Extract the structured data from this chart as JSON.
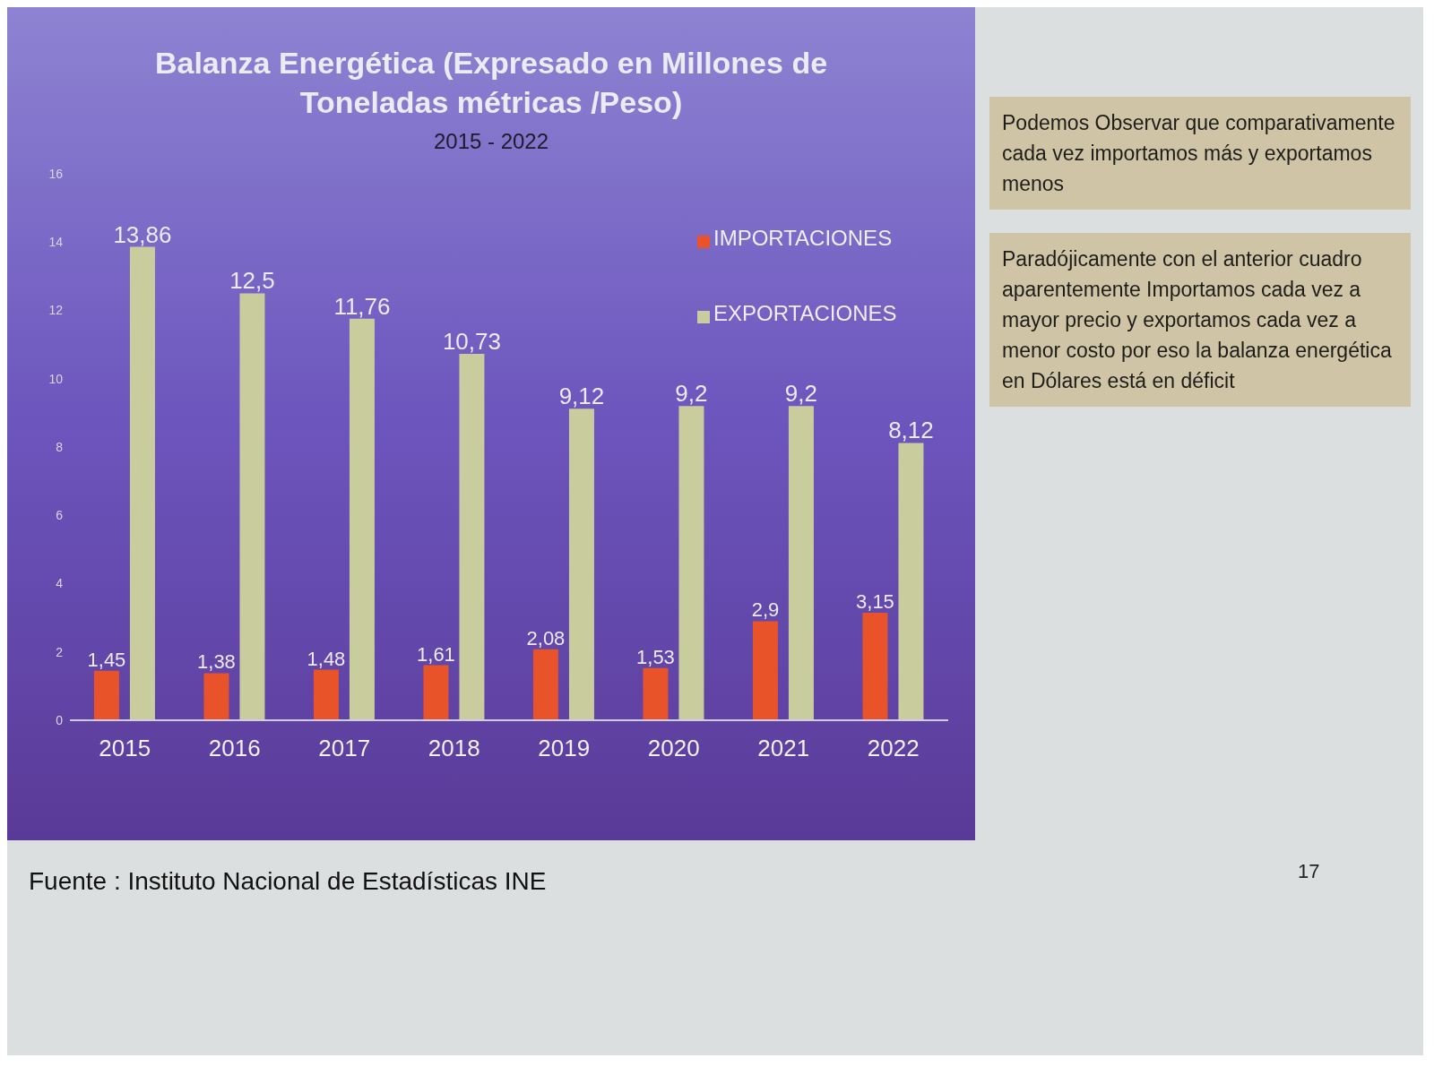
{
  "chart_data": {
    "type": "bar",
    "title": "Balanza Energética (Expresado en Millones de Toneladas métricas /Peso)",
    "subtitle": "2015 - 2022",
    "categories": [
      "2015",
      "2016",
      "2017",
      "2018",
      "2019",
      "2020",
      "2021",
      "2022"
    ],
    "series": [
      {
        "name": "IMPORTACIONES",
        "color": "#e8532a",
        "values": [
          1.45,
          1.38,
          1.48,
          1.61,
          2.08,
          1.53,
          2.9,
          3.15
        ],
        "value_labels": [
          "1,45",
          "1,38",
          "1,48",
          "1,61",
          "2,08",
          "1,53",
          "2,9",
          "3,15"
        ]
      },
      {
        "name": "EXPORTACIONES",
        "color": "#c9cc9c",
        "values": [
          13.86,
          12.5,
          11.76,
          10.73,
          9.12,
          9.2,
          9.2,
          8.12
        ],
        "value_labels": [
          "13,86",
          "12,5",
          "11,76",
          "10,73",
          "9,12",
          "9,2",
          "9,2",
          "8,12"
        ]
      }
    ],
    "ylim": [
      0,
      16
    ],
    "yticks": [
      0,
      2,
      4,
      6,
      8,
      10,
      12,
      14,
      16
    ],
    "legend": "top right",
    "annotations": [
      "Podemos Observar que comparativamente cada vez importamos más y exportamos menos",
      "Paradójicamente con el anterior cuadro aparentemente Importamos cada vez a mayor precio y exportamos cada vez a menor costo por eso la balanza energética en Dólares está en déficit",
      "Fuente : Instituto Nacional de Estadísticas  INE",
      "17"
    ]
  }
}
